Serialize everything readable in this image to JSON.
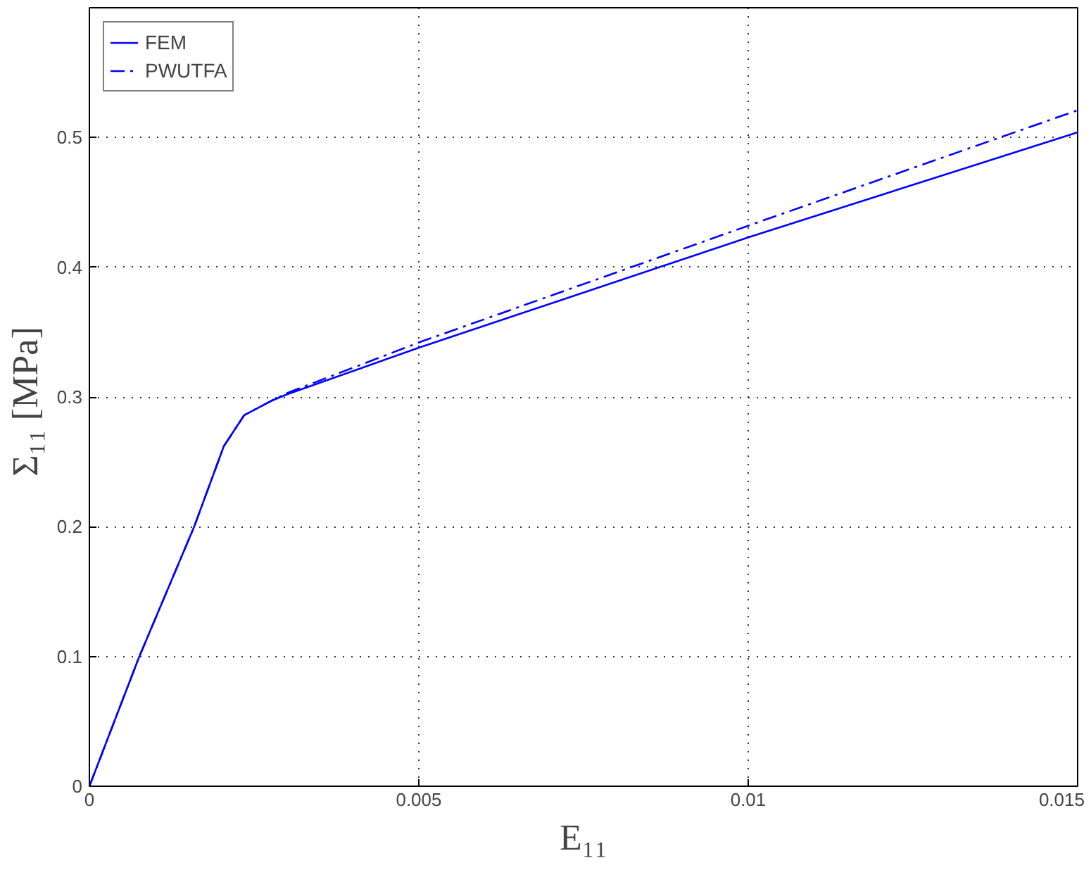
{
  "chart_data": {
    "type": "line",
    "xlabel": "E₁₁",
    "ylabel": "Σ₁₁  [MPa]",
    "xlim": [
      0,
      0.015
    ],
    "ylim": [
      0,
      0.6
    ],
    "xticks": [
      0,
      0.005,
      0.01,
      0.015
    ],
    "yticks": [
      0,
      0.1,
      0.2,
      0.3,
      0.4,
      0.5
    ],
    "grid": true,
    "legend": "top left",
    "series": [
      {
        "name": "FEM",
        "color": "#0000ff",
        "line_style": "solid",
        "x": [
          0,
          0.00075,
          0.00159,
          0.00204,
          0.00235,
          0.00276,
          0.003,
          0.005,
          0.01,
          0.015
        ],
        "values": [
          0,
          0.099,
          0.2,
          0.262,
          0.286,
          0.297,
          0.302,
          0.338,
          0.423,
          0.504
        ]
      },
      {
        "name": "PWUTFA",
        "color": "#0000ff",
        "line_style": "dashdot",
        "x": [
          0,
          0.00075,
          0.00159,
          0.00204,
          0.00235,
          0.00276,
          0.003,
          0.005,
          0.01,
          0.015
        ],
        "values": [
          0,
          0.099,
          0.2,
          0.262,
          0.286,
          0.297,
          0.303,
          0.342,
          0.432,
          0.521
        ]
      }
    ]
  }
}
